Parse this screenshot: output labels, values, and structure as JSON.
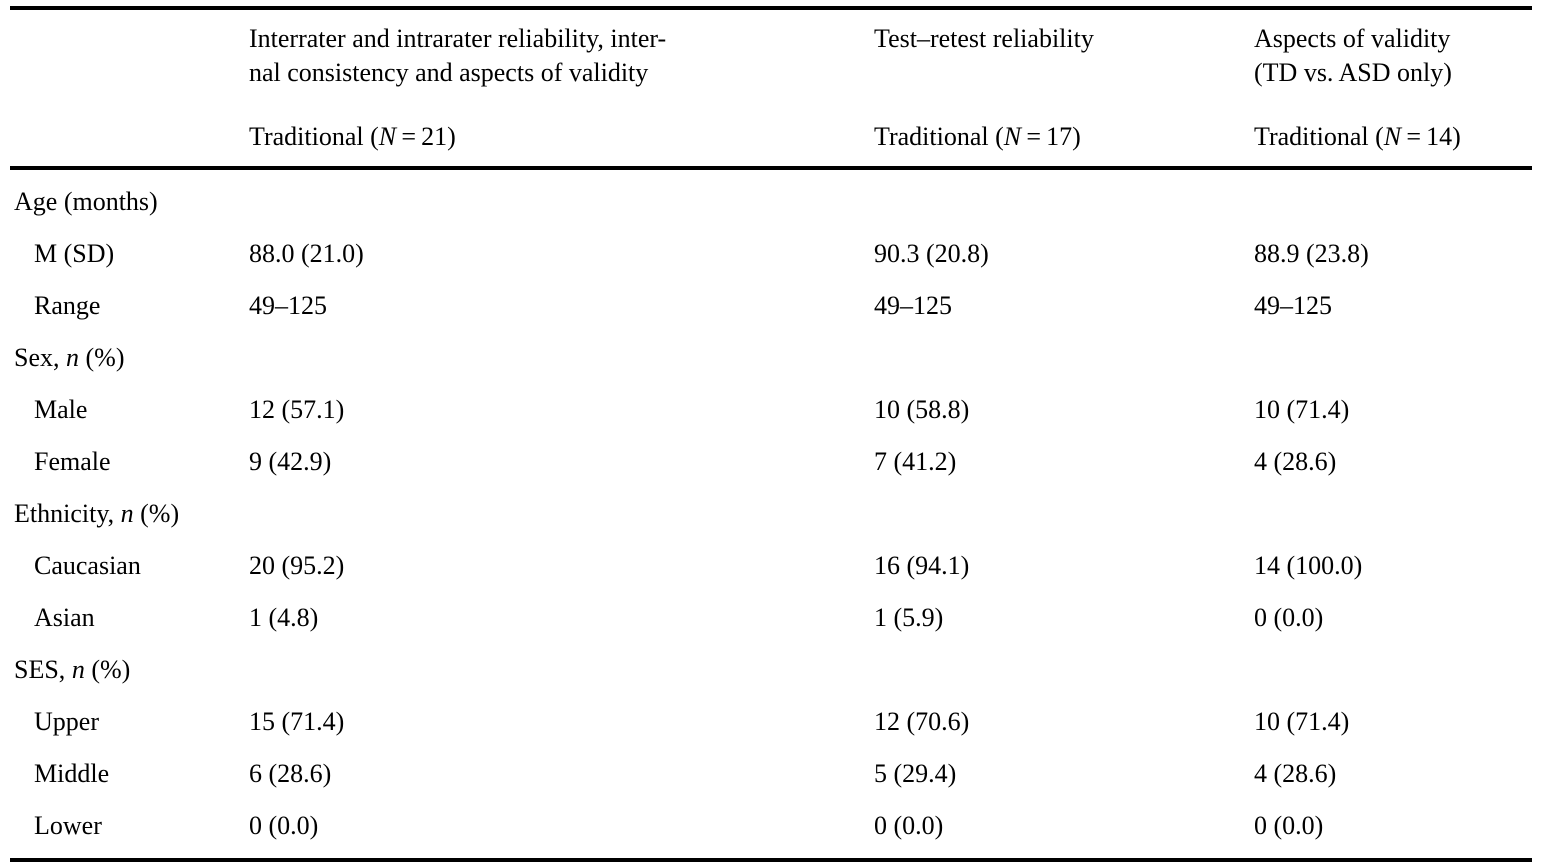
{
  "table": {
    "columns": [
      {
        "title_lines": [
          "Interrater and intrarater reliability, inter-",
          "nal consistency and aspects of validity"
        ],
        "subtitle_parts": [
          {
            "t": "Traditional ("
          },
          {
            "t": "N",
            "i": true
          },
          {
            "t": " = 21)"
          }
        ]
      },
      {
        "title_lines": [
          "Test–retest reliability"
        ],
        "subtitle_parts": [
          {
            "t": "Traditional ("
          },
          {
            "t": "N",
            "i": true
          },
          {
            "t": " = 17)"
          }
        ]
      },
      {
        "title_lines": [
          "Aspects of validity",
          "(TD vs. ASD only)"
        ],
        "subtitle_parts": [
          {
            "t": "Traditional ("
          },
          {
            "t": "N",
            "i": true
          },
          {
            "t": " = 14)"
          }
        ]
      }
    ],
    "sections": [
      {
        "label_parts": [
          {
            "t": "Age (months)"
          }
        ],
        "rows": [
          {
            "label": "M (SD)",
            "values": [
              "88.0 (21.0)",
              "90.3 (20.8)",
              "88.9 (23.8)"
            ]
          },
          {
            "label": "Range",
            "values": [
              "49–125",
              "49–125",
              "49–125"
            ]
          }
        ]
      },
      {
        "label_parts": [
          {
            "t": "Sex, "
          },
          {
            "t": "n",
            "i": true
          },
          {
            "t": " (%)"
          }
        ],
        "rows": [
          {
            "label": "Male",
            "values": [
              "12 (57.1)",
              "10 (58.8)",
              "10 (71.4)"
            ]
          },
          {
            "label": "Female",
            "values": [
              "9 (42.9)",
              "7 (41.2)",
              "4 (28.6)"
            ]
          }
        ]
      },
      {
        "label_parts": [
          {
            "t": "Ethnicity, "
          },
          {
            "t": "n",
            "i": true
          },
          {
            "t": " (%)"
          }
        ],
        "rows": [
          {
            "label": "Caucasian",
            "values": [
              "20 (95.2)",
              "16 (94.1)",
              "14 (100.0)"
            ]
          },
          {
            "label": "Asian",
            "values": [
              "1 (4.8)",
              "1 (5.9)",
              "0 (0.0)"
            ]
          }
        ]
      },
      {
        "label_parts": [
          {
            "t": "SES, "
          },
          {
            "t": "n",
            "i": true
          },
          {
            "t": " (%)"
          }
        ],
        "rows": [
          {
            "label": "Upper",
            "values": [
              "15 (71.4)",
              "12 (70.6)",
              "10 (71.4)"
            ]
          },
          {
            "label": "Middle",
            "values": [
              "6 (28.6)",
              "5 (29.4)",
              "4 (28.6)"
            ]
          },
          {
            "label": "Lower",
            "values": [
              "0 (0.0)",
              "0 (0.0)",
              "0 (0.0)"
            ]
          }
        ]
      }
    ]
  }
}
